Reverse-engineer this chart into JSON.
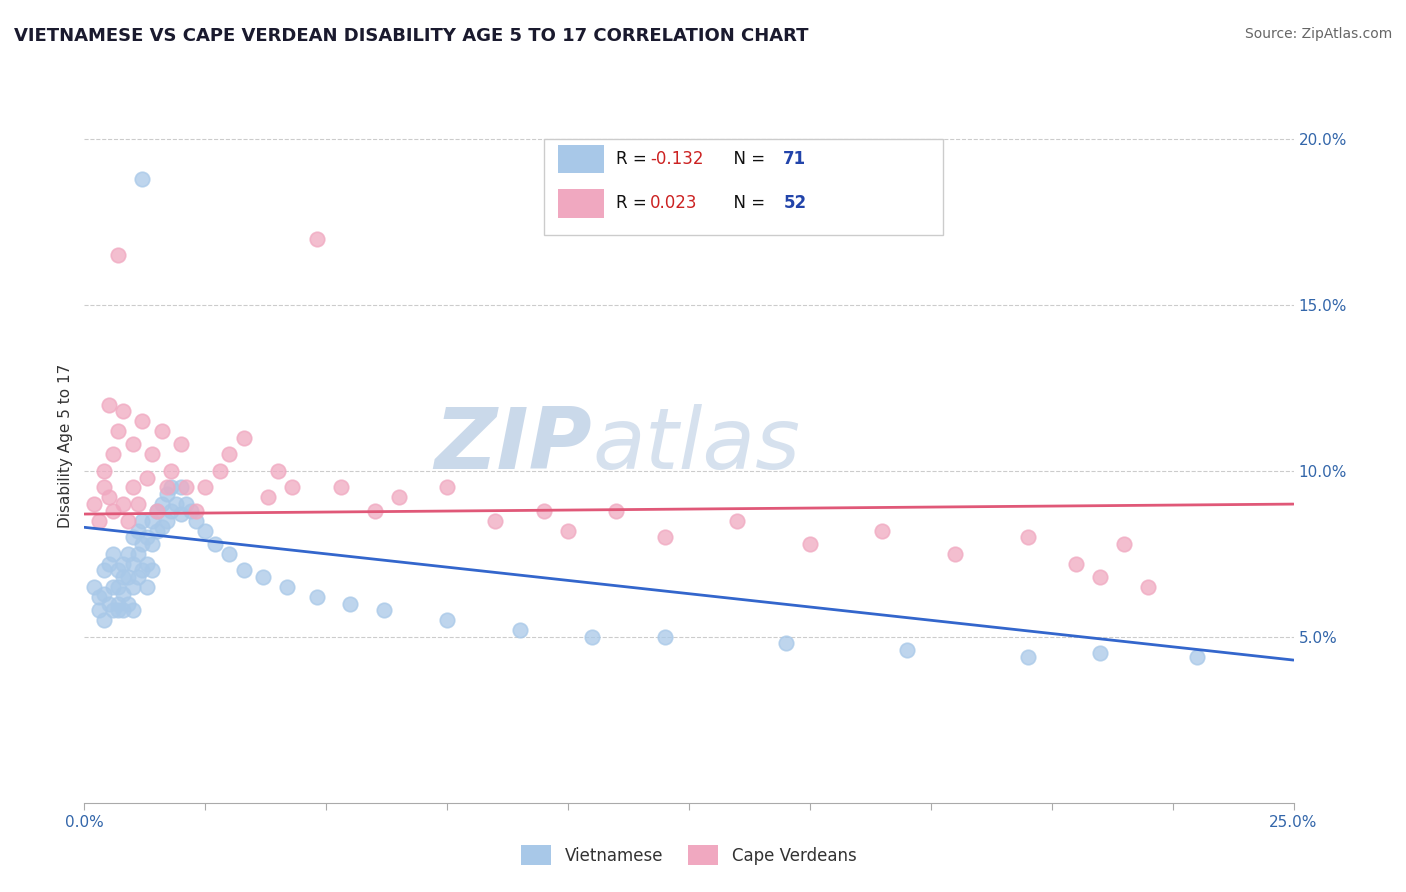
{
  "title": "VIETNAMESE VS CAPE VERDEAN DISABILITY AGE 5 TO 17 CORRELATION CHART",
  "source": "Source: ZipAtlas.com",
  "ylabel": "Disability Age 5 to 17",
  "xlim": [
    0.0,
    0.25
  ],
  "ylim": [
    0.0,
    0.215
  ],
  "viet_color": "#a8c8e8",
  "cape_color": "#f0a8c0",
  "viet_line_color": "#3366cc",
  "cape_line_color": "#e05878",
  "watermark_zip": "ZIP",
  "watermark_atlas": "atlas",
  "background_color": "#ffffff",
  "grid_color": "#cccccc",
  "viet_trend_x": [
    0.0,
    0.25
  ],
  "viet_trend_y": [
    0.083,
    0.043
  ],
  "cape_trend_x": [
    0.0,
    0.25
  ],
  "cape_trend_y": [
    0.087,
    0.09
  ],
  "legend_text_color": "#2244aa",
  "legend_r_color": "#cc2222",
  "title_color": "#1a1a2e",
  "tick_color": "#3366aa"
}
